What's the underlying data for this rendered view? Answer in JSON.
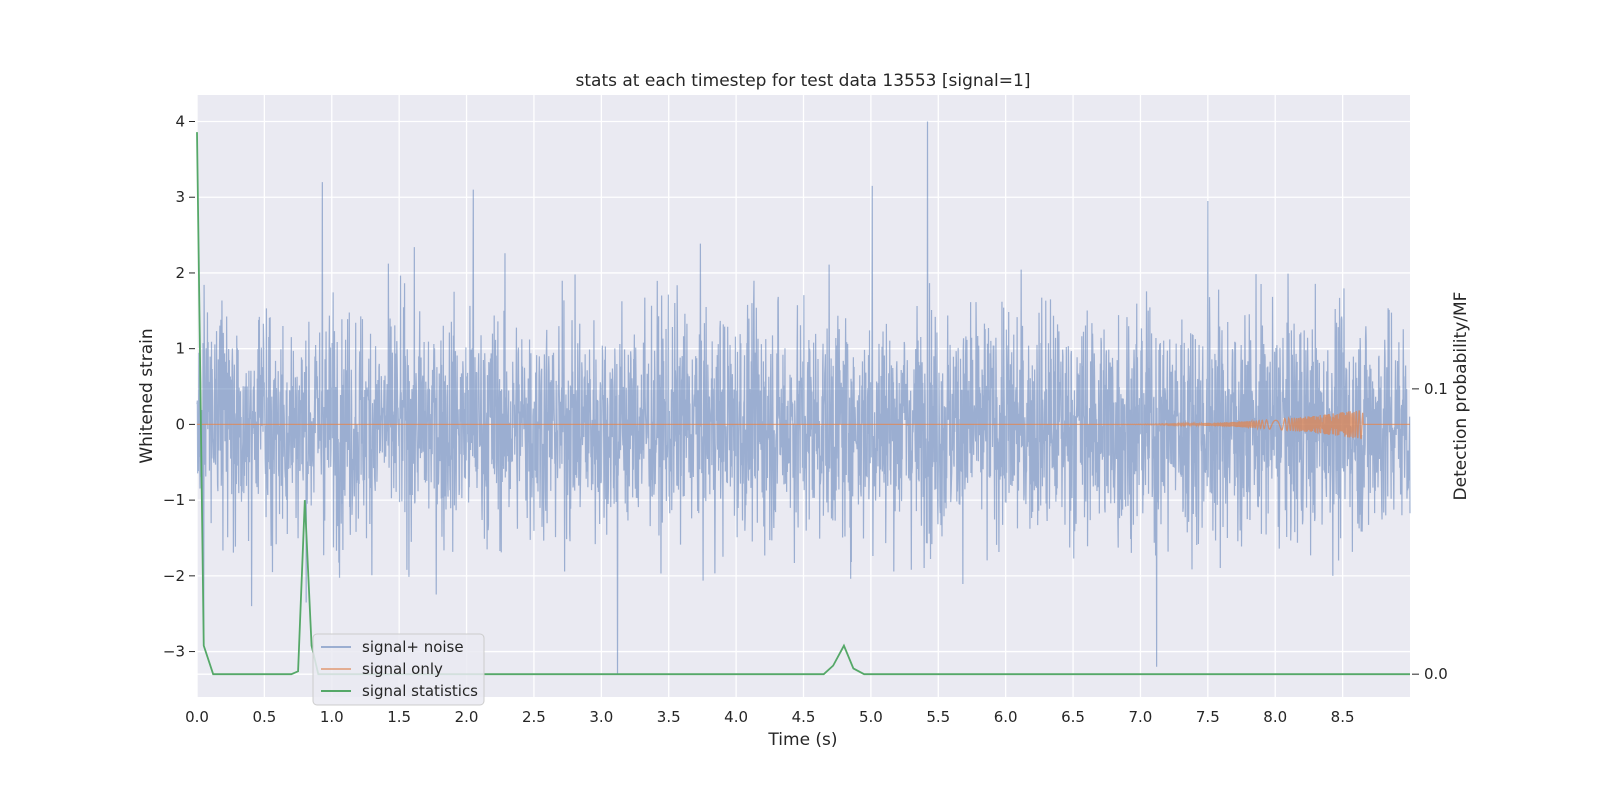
{
  "chart_data": {
    "type": "line",
    "title": "stats at each timestep for test data 13553 [signal=1]",
    "xlabel": "Time (s)",
    "ylabel": "Whitened strain",
    "y2label": "Detection probability/MF",
    "xlim": [
      0.0,
      9.0
    ],
    "ylim": [
      -3.6,
      4.35
    ],
    "y2lim": [
      -0.008,
      0.203
    ],
    "x_ticks": [
      "0.0",
      "0.5",
      "1.0",
      "1.5",
      "2.0",
      "2.5",
      "3.0",
      "3.5",
      "4.0",
      "4.5",
      "5.0",
      "5.5",
      "6.0",
      "6.5",
      "7.0",
      "7.5",
      "8.0",
      "8.5"
    ],
    "y_ticks": [
      "−3",
      "−2",
      "−1",
      "0",
      "1",
      "2",
      "3",
      "4"
    ],
    "y2_ticks": [
      "0.0",
      "0.1"
    ],
    "grid": true,
    "legend_position": "lower-left",
    "series": [
      {
        "name": "signal+ noise",
        "axis": "left",
        "color": "#4c72b0",
        "description_stats": {
          "t_start": 0.0,
          "t_end": 9.0,
          "min": -3.3,
          "max": 4.0
        },
        "peaks": [
          [
            0.93,
            3.2
          ],
          [
            2.05,
            3.1
          ],
          [
            5.42,
            4.0
          ],
          [
            5.01,
            3.15
          ],
          [
            7.5,
            2.95
          ],
          [
            3.12,
            -3.3
          ],
          [
            7.12,
            -3.2
          ],
          [
            0.05,
            -2.9
          ]
        ]
      },
      {
        "name": "signal only",
        "axis": "left",
        "color": "#dd8452",
        "chirp_start": 6.5,
        "chirp_peak_time": 8.65,
        "chirp_peak_amplitude": 0.2
      },
      {
        "name": "signal statistics",
        "axis": "right",
        "color": "#55a868",
        "x": [
          0.0,
          0.02,
          0.05,
          0.12,
          0.2,
          0.5,
          0.7,
          0.75,
          0.8,
          0.85,
          0.9,
          0.95,
          1.0,
          3.0,
          4.65,
          4.72,
          4.8,
          4.87,
          4.95,
          8.0,
          9.0
        ],
        "y": [
          0.19,
          0.12,
          0.01,
          0.0,
          0.0,
          0.0,
          0.0,
          0.001,
          0.061,
          0.01,
          0.0,
          0.0,
          0.0,
          0.0,
          0.0,
          0.003,
          0.01,
          0.002,
          0.0,
          0.0,
          0.0
        ]
      }
    ]
  }
}
